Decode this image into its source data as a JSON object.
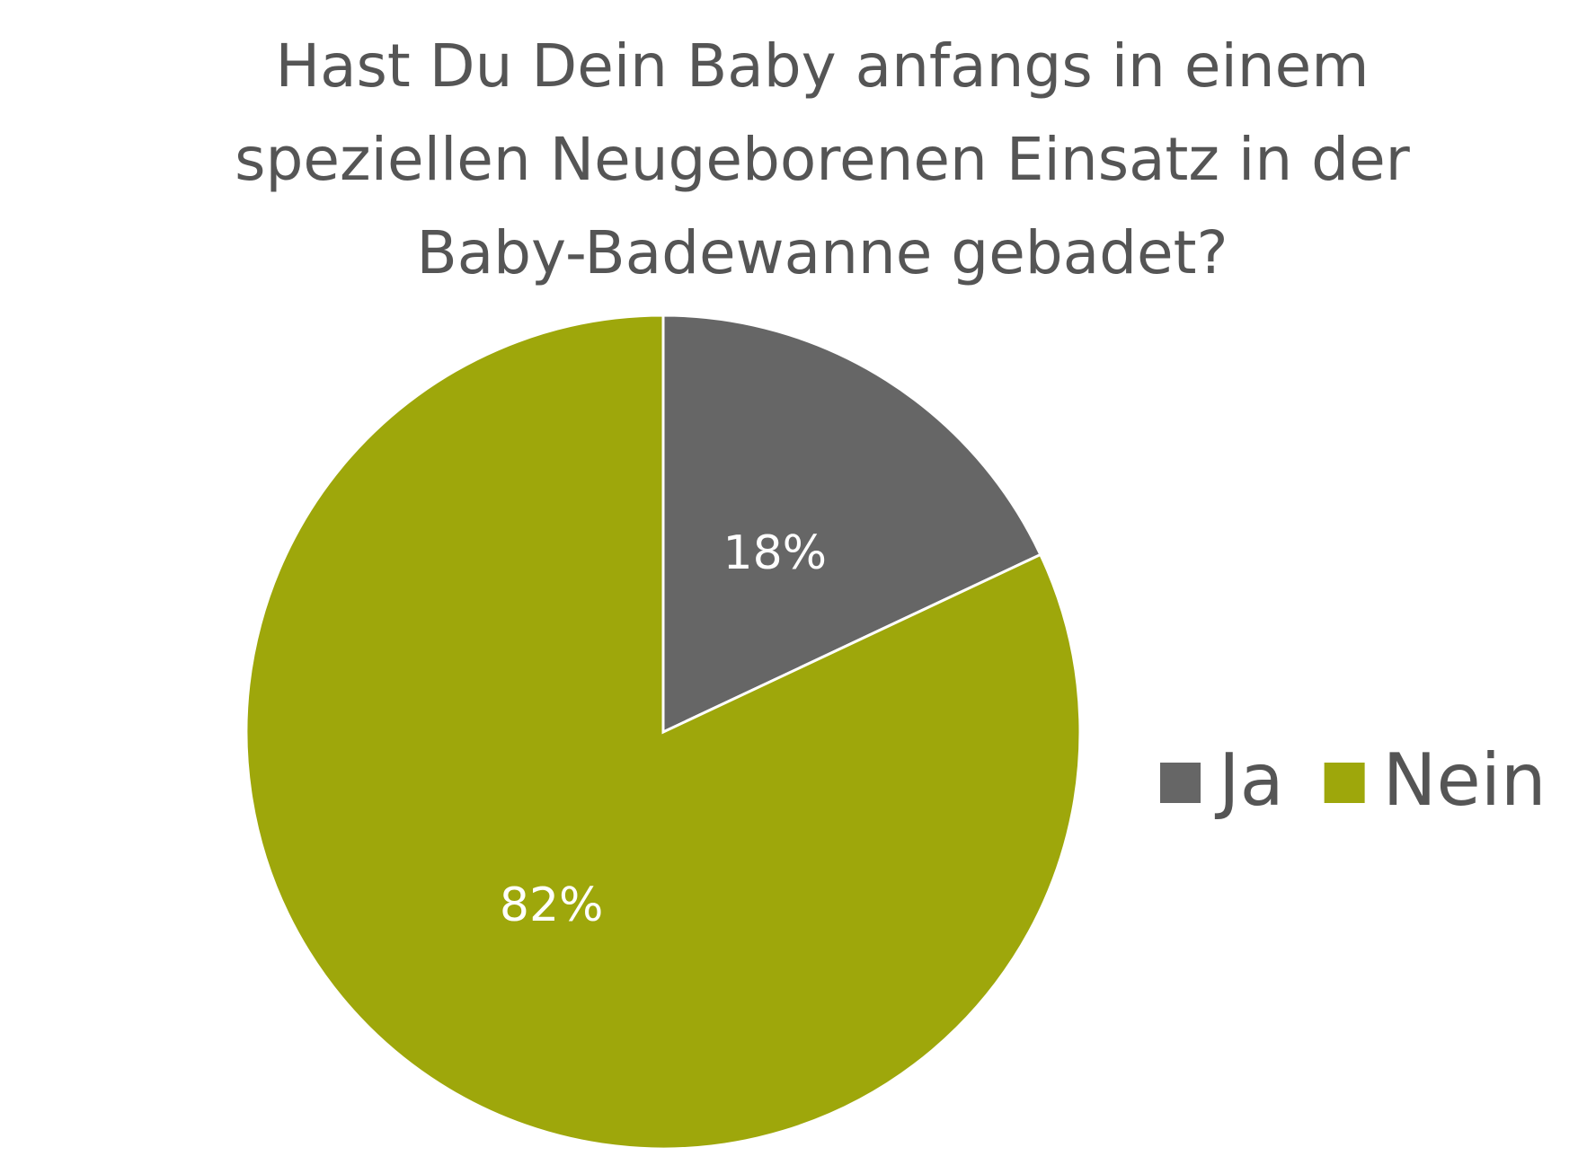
{
  "chart_data": {
    "type": "pie",
    "title": "Hast Du Dein Baby anfangs in einem speziellen Neugeborenen Einsatz in der Baby-Badewanne gebadet?",
    "categories": [
      "Ja",
      "Nein"
    ],
    "values": [
      18,
      82
    ],
    "value_labels": [
      "18%",
      "82%"
    ],
    "colors": [
      "#666666",
      "#9ea70b"
    ],
    "legend": "right"
  }
}
